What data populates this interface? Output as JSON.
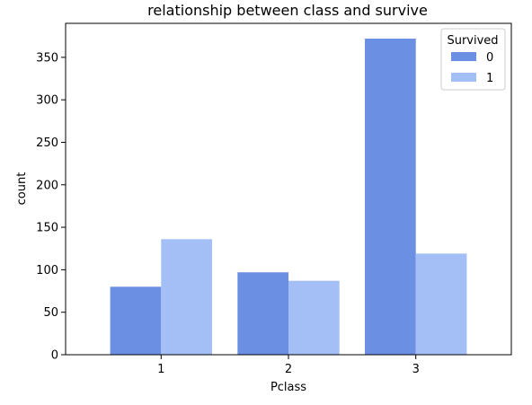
{
  "chart_data": {
    "type": "bar",
    "title": "relationship between class and survive",
    "xlabel": "Pclass",
    "ylabel": "count",
    "categories": [
      "1",
      "2",
      "3"
    ],
    "series": [
      {
        "name": "0",
        "values": [
          80,
          97,
          372
        ],
        "color": "#6b8fe3"
      },
      {
        "name": "1",
        "values": [
          136,
          87,
          119
        ],
        "color": "#a4bff5"
      }
    ],
    "ylim": [
      0,
      390
    ],
    "yticks": [
      0,
      50,
      100,
      150,
      200,
      250,
      300,
      350
    ],
    "legend": {
      "title": "Survived",
      "placement": "top-right"
    },
    "grid": false
  }
}
